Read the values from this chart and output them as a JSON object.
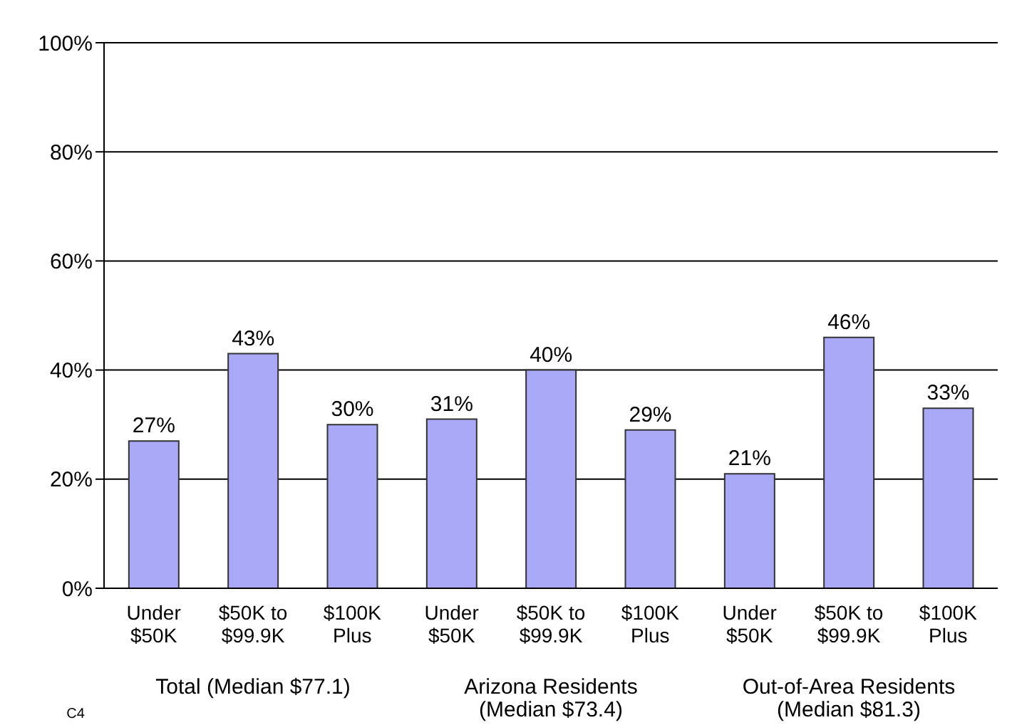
{
  "chart_data": {
    "type": "bar",
    "categories": [
      "Under\n$50K",
      "$50K to\n$99.9K",
      "$100K\nPlus",
      "Under\n$50K",
      "$50K to\n$99.9K",
      "$100K\nPlus",
      "Under\n$50K",
      "$50K to\n$99.9K",
      "$100K\nPlus"
    ],
    "values": [
      27,
      43,
      30,
      31,
      40,
      29,
      21,
      46,
      33
    ],
    "value_labels": [
      "27%",
      "43%",
      "30%",
      "31%",
      "40%",
      "29%",
      "21%",
      "46%",
      "33%"
    ],
    "color": "#a9a9f8",
    "ylim": [
      0,
      100
    ],
    "yticks": [
      {
        "value": 0,
        "label": "0%"
      },
      {
        "value": 20,
        "label": "20%"
      },
      {
        "value": 40,
        "label": "40%"
      },
      {
        "value": 60,
        "label": "60%"
      },
      {
        "value": 80,
        "label": "80%"
      },
      {
        "value": 100,
        "label": "100%"
      }
    ],
    "grid": "y",
    "annotations": [
      "Total (Median $77.1)",
      "Arizona Residents\n(Median $73.4)",
      "Out-of-Area Residents\n(Median $81.3)",
      "C4"
    ]
  }
}
